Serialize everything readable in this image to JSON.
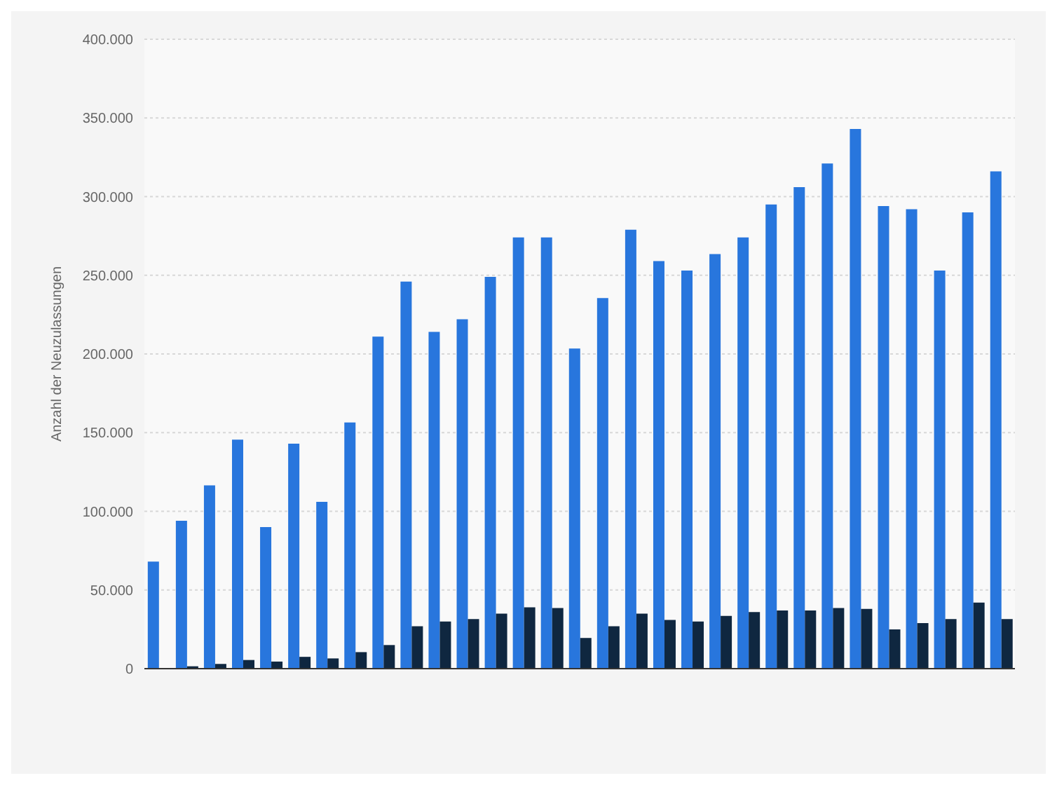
{
  "chart_data": {
    "type": "bar",
    "ylabel": "Anzahl der Neuzulassungen",
    "categories": [
      null,
      null,
      null,
      null,
      null,
      null,
      null,
      null,
      null,
      null,
      null,
      null,
      null,
      null,
      null,
      null,
      null,
      null,
      null,
      null,
      null,
      null,
      null,
      null,
      null,
      null,
      null,
      null,
      null,
      null,
      null
    ],
    "series": [
      {
        "color": "#2876dd",
        "values": [
          68000,
          94000,
          116500,
          145500,
          90000,
          143000,
          106000,
          156500,
          211000,
          246000,
          214000,
          222000,
          249000,
          274000,
          274000,
          203500,
          235500,
          279000,
          259000,
          253000,
          263500,
          274000,
          295000,
          306000,
          321000,
          343000,
          294000,
          292000,
          253000,
          290000,
          316000
        ]
      },
      {
        "color": "#0f2740",
        "values": [
          null,
          1500,
          3000,
          5500,
          4500,
          7500,
          6500,
          10500,
          15000,
          27000,
          30000,
          31500,
          35000,
          39000,
          38500,
          19500,
          27000,
          35000,
          31000,
          30000,
          33500,
          36000,
          37000,
          37000,
          38500,
          38000,
          25000,
          29000,
          31500,
          42000,
          31500
        ]
      }
    ],
    "ylim": [
      0,
      400000
    ],
    "yticks": [
      {
        "value": 0,
        "label": "0"
      },
      {
        "value": 50000,
        "label": "50.000"
      },
      {
        "value": 100000,
        "label": "100.000"
      },
      {
        "value": 150000,
        "label": "150.000"
      },
      {
        "value": 200000,
        "label": "200.000"
      },
      {
        "value": 250000,
        "label": "250.000"
      },
      {
        "value": 300000,
        "label": "300.000"
      },
      {
        "value": 350000,
        "label": "350.000"
      },
      {
        "value": 400000,
        "label": "400.000"
      }
    ],
    "grid": "y"
  }
}
